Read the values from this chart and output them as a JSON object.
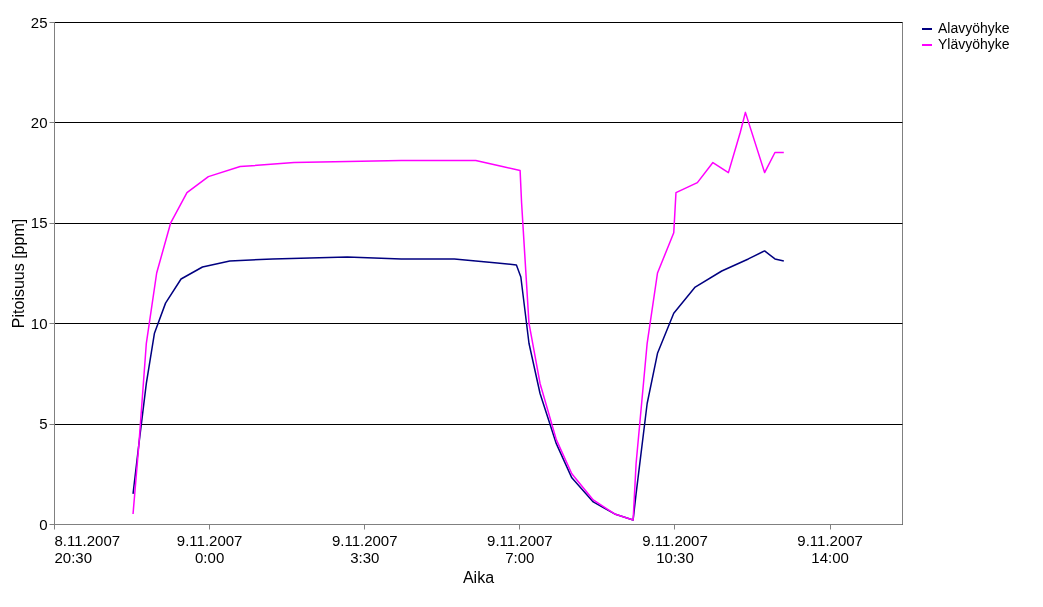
{
  "chart_data": {
    "type": "line",
    "xlabel": "Aika",
    "ylabel": "Pitoisuus [ppm]",
    "xlim": [
      "2007-11-08T20:30",
      "2007-11-09T15:38"
    ],
    "xticks": [
      {
        "value": "2007-11-08T20:30",
        "label": "8.11.2007 20:30"
      },
      {
        "value": "2007-11-09T00:00",
        "label": "9.11.2007 0:00"
      },
      {
        "value": "2007-11-09T03:30",
        "label": "9.11.2007 3:30"
      },
      {
        "value": "2007-11-09T07:00",
        "label": "9.11.2007 7:00"
      },
      {
        "value": "2007-11-09T10:30",
        "label": "9.11.2007 10:30"
      },
      {
        "value": "2007-11-09T14:00",
        "label": "9.11.2007 14:00"
      }
    ],
    "ylim": [
      0,
      25
    ],
    "yticks": [
      0,
      5,
      10,
      15,
      20,
      25
    ],
    "grid": "y",
    "legend": "right",
    "marker": "none",
    "line_style": "solid",
    "series": [
      {
        "name": "Alavyöhyke",
        "color": "#000080",
        "x": [
          "2007-11-08T22:17",
          "2007-11-08T22:25",
          "2007-11-08T22:35",
          "2007-11-08T22:46",
          "2007-11-08T23:01",
          "2007-11-08T23:22",
          "2007-11-08T23:51",
          "2007-11-09T00:28",
          "2007-11-09T01:26",
          "2007-11-09T03:07",
          "2007-11-09T04:20",
          "2007-11-09T05:32",
          "2007-11-09T06:30",
          "2007-11-09T06:56",
          "2007-11-09T07:02",
          "2007-11-09T07:13",
          "2007-11-09T07:28",
          "2007-11-09T07:50",
          "2007-11-09T08:11",
          "2007-11-09T08:40",
          "2007-11-09T09:09",
          "2007-11-09T09:34",
          "2007-11-09T09:38",
          "2007-11-09T09:53",
          "2007-11-09T10:07",
          "2007-11-09T10:29",
          "2007-11-09T10:58",
          "2007-11-09T11:34",
          "2007-11-09T12:10",
          "2007-11-09T12:32",
          "2007-11-09T12:46",
          "2007-11-09T12:58"
        ],
        "values": [
          1.5,
          4,
          7,
          9.5,
          11,
          12.2,
          12.8,
          13.1,
          13.2,
          13.3,
          13.2,
          13.2,
          13.0,
          12.9,
          12.3,
          9,
          6.5,
          4,
          2.3,
          1.1,
          0.5,
          0.2,
          1.5,
          6,
          8.5,
          10.5,
          11.8,
          12.6,
          13.2,
          13.6,
          13.2,
          13.1
        ]
      },
      {
        "name": "Ylävyöhyke",
        "color": "#ff00ff",
        "x": [
          "2007-11-08T22:17",
          "2007-11-08T22:25",
          "2007-11-08T22:35",
          "2007-11-08T22:49",
          "2007-11-08T23:08",
          "2007-11-08T23:30",
          "2007-11-08T23:59",
          "2007-11-09T00:42",
          "2007-11-09T01:55",
          "2007-11-09T04:20",
          "2007-11-09T06:01",
          "2007-11-09T06:37",
          "2007-11-09T07:01",
          "2007-11-09T07:03",
          "2007-11-09T07:13",
          "2007-11-09T07:28",
          "2007-11-09T07:50",
          "2007-11-09T08:11",
          "2007-11-09T08:40",
          "2007-11-09T09:09",
          "2007-11-09T09:34",
          "2007-11-09T09:38",
          "2007-11-09T09:53",
          "2007-11-09T10:07",
          "2007-11-09T10:29",
          "2007-11-09T10:32",
          "2007-11-09T11:01",
          "2007-11-09T11:22",
          "2007-11-09T11:43",
          "2007-11-09T11:59",
          "2007-11-09T12:06",
          "2007-11-09T12:32",
          "2007-11-09T12:46",
          "2007-11-09T12:58"
        ],
        "values": [
          0.5,
          4,
          9,
          12.5,
          15,
          16.5,
          17.3,
          17.8,
          18.0,
          18.1,
          18.1,
          17.8,
          17.6,
          16,
          10,
          7,
          4.2,
          2.5,
          1.2,
          0.5,
          0.2,
          3,
          9,
          12.5,
          14.5,
          16.5,
          17,
          18,
          17.5,
          19.5,
          20.5,
          17.5,
          18.5,
          18.5
        ]
      }
    ]
  }
}
